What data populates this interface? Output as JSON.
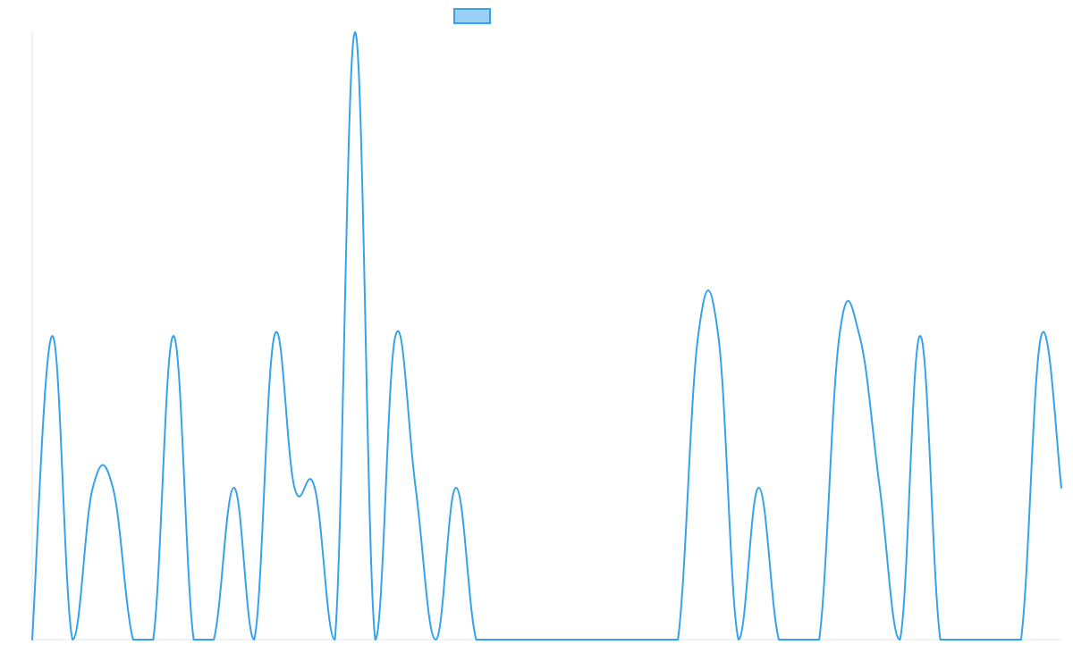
{
  "chart_data": {
    "type": "line",
    "title": "",
    "xlabel": "",
    "ylabel": "",
    "ylim": [
      0,
      4
    ],
    "grid": false,
    "legend_position": "top-center",
    "x": [
      0,
      1,
      2,
      3,
      4,
      5,
      6,
      7,
      8,
      9,
      10,
      11,
      12,
      13,
      14,
      15,
      16,
      17,
      18,
      19,
      20,
      21,
      22,
      23,
      24,
      25,
      26,
      27,
      28,
      29,
      30,
      31,
      32,
      33,
      34,
      35,
      36,
      37,
      38,
      39,
      40,
      41,
      42,
      43,
      44,
      45,
      46,
      47,
      48,
      49,
      50,
      51
    ],
    "series": [
      {
        "name": "",
        "color": "#36a2eb",
        "fill_color": "#9ad0f5",
        "values": [
          0,
          2,
          0,
          1,
          1,
          0,
          0,
          2,
          0,
          0,
          1,
          0,
          2,
          1,
          1,
          0,
          4,
          0,
          2,
          1,
          0,
          1,
          0,
          0,
          0,
          0,
          0,
          0,
          0,
          0,
          0,
          0,
          0,
          2,
          2,
          0,
          1,
          0,
          0,
          0,
          2,
          2,
          1,
          0,
          2,
          0,
          0,
          0,
          0,
          0,
          2,
          1
        ]
      }
    ]
  }
}
